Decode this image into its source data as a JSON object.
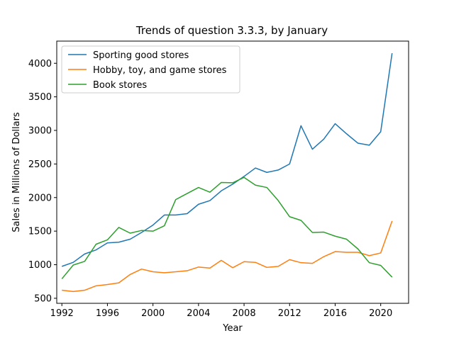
{
  "chart_data": {
    "type": "line",
    "title": "Trends of question 3.3.3, by January",
    "xlabel": "Year",
    "ylabel": "Sales in Millions of Dollars",
    "xlim": [
      1991.55,
      2022.45
    ],
    "ylim": [
      425,
      4330
    ],
    "xticks": [
      1992,
      1996,
      2000,
      2004,
      2008,
      2012,
      2016,
      2020
    ],
    "yticks": [
      500,
      1000,
      1500,
      2000,
      2500,
      3000,
      3500,
      4000
    ],
    "grid": false,
    "legend_position": "top-left",
    "x": [
      1992,
      1993,
      1994,
      1995,
      1996,
      1997,
      1998,
      1999,
      2000,
      2001,
      2002,
      2003,
      2004,
      2005,
      2006,
      2007,
      2008,
      2009,
      2010,
      2011,
      2012,
      2013,
      2014,
      2015,
      2016,
      2017,
      2018,
      2019,
      2020,
      2021
    ],
    "series": [
      {
        "name": "Sporting good stores",
        "color": "#1f77b4",
        "values": [
          975,
          1035,
          1160,
          1220,
          1325,
          1335,
          1380,
          1480,
          1590,
          1740,
          1740,
          1760,
          1900,
          1955,
          2100,
          2200,
          2315,
          2440,
          2375,
          2410,
          2500,
          3070,
          2720,
          2870,
          3100,
          2950,
          2810,
          2780,
          2980,
          4150
        ]
      },
      {
        "name": "Hobby, toy, and game stores",
        "color": "#ff7f0e",
        "values": [
          620,
          600,
          620,
          685,
          705,
          730,
          855,
          935,
          895,
          880,
          895,
          910,
          965,
          950,
          1065,
          955,
          1045,
          1035,
          960,
          975,
          1075,
          1030,
          1020,
          1120,
          1195,
          1185,
          1185,
          1135,
          1175,
          1650
        ]
      },
      {
        "name": "Book stores",
        "color": "#2ca02c",
        "values": [
          790,
          995,
          1050,
          1305,
          1370,
          1555,
          1470,
          1510,
          1500,
          1580,
          1970,
          2060,
          2150,
          2080,
          2225,
          2220,
          2300,
          2185,
          2150,
          1955,
          1715,
          1660,
          1480,
          1485,
          1425,
          1380,
          1235,
          1030,
          990,
          815
        ]
      }
    ]
  }
}
